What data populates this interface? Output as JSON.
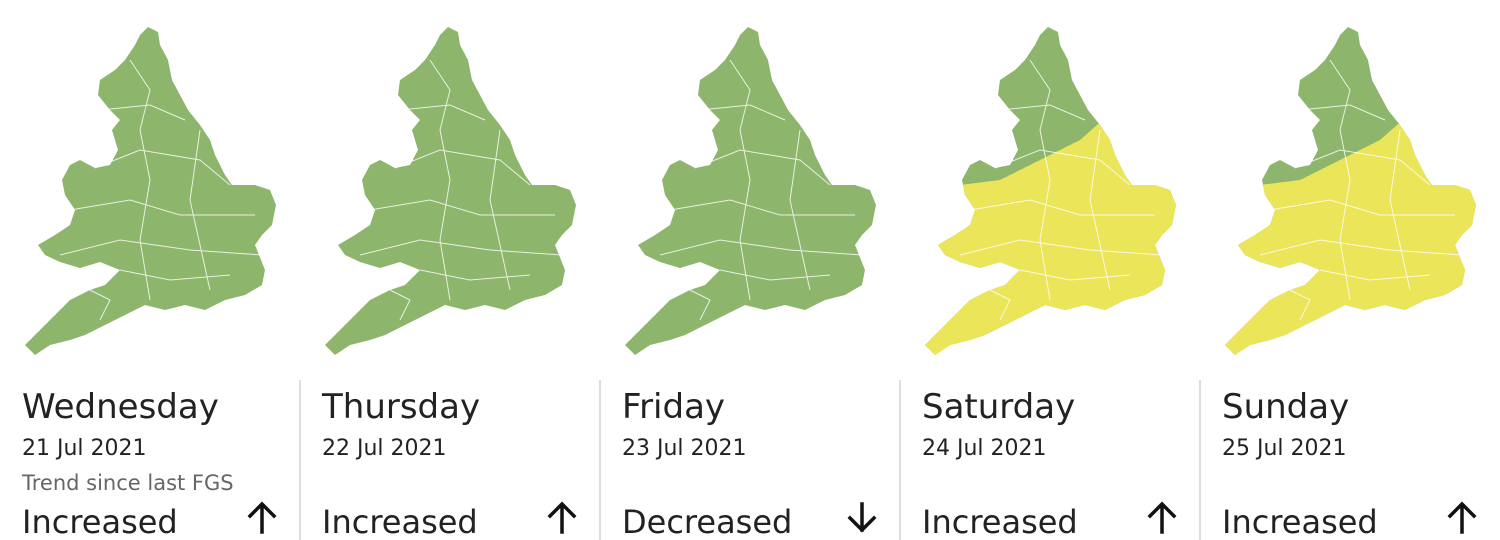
{
  "trend_caption": "Trend since last FGS",
  "days": [
    {
      "day": "Wednesday",
      "date": "21 Jul 2021",
      "trend": "Increased"
    },
    {
      "day": "Thursday",
      "date": "22 Jul 2021",
      "trend": "Increased"
    },
    {
      "day": "Friday",
      "date": "23 Jul 2021",
      "trend": "Decreased"
    },
    {
      "day": "Saturday",
      "date": "24 Jul 2021",
      "trend": "Increased"
    },
    {
      "day": "Sunday",
      "date": "25 Jul 2021",
      "trend": "Increased"
    }
  ]
}
